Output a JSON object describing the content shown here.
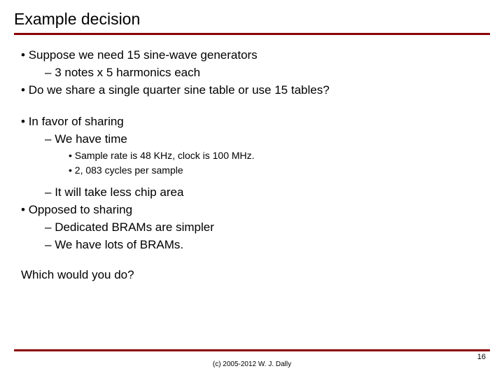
{
  "title": "Example decision",
  "group1": {
    "b1": "Suppose we need 15 sine-wave generators",
    "b1_1": "3 notes x 5 harmonics each",
    "b2": "Do we share a single quarter sine table or use 15 tables?"
  },
  "group2": {
    "b1": "In favor of sharing",
    "b1_1": "We have time",
    "b1_1_1": "Sample rate is 48 KHz, clock is 100 MHz.",
    "b1_1_2": "2, 083 cycles per sample",
    "b1_2": "It will take less chip area",
    "b2": "Opposed to sharing",
    "b2_1": "Dedicated BRAMs are simpler",
    "b2_2": "We have lots of BRAMs."
  },
  "closing": "Which would you do?",
  "footer": {
    "copyright": "(c) 2005-2012 W. J. Dally",
    "page": "16"
  },
  "colors": {
    "rule": "#8b0000",
    "text": "#000000",
    "background": "#ffffff"
  }
}
